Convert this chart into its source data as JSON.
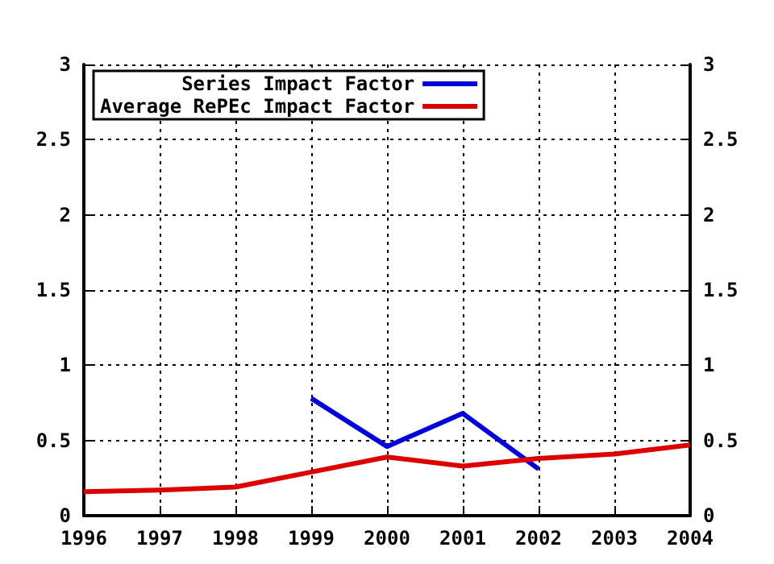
{
  "chart_data": {
    "type": "line",
    "x": [
      1996,
      1997,
      1998,
      1999,
      2000,
      2001,
      2002,
      2003,
      2004
    ],
    "series": [
      {
        "name": "Series Impact Factor",
        "color": "#0000dd",
        "values": [
          null,
          null,
          null,
          0.78,
          0.46,
          0.68,
          0.31,
          null,
          null
        ]
      },
      {
        "name": "Average RePEc Impact Factor",
        "color": "#dd0000",
        "values": [
          0.16,
          0.17,
          0.19,
          0.29,
          0.39,
          0.33,
          0.38,
          0.41,
          0.47
        ]
      }
    ],
    "xlim": [
      1996,
      2004
    ],
    "xticks": [
      1996,
      1997,
      1998,
      1999,
      2000,
      2001,
      2002,
      2003,
      2004
    ],
    "ylim": [
      0,
      3
    ],
    "yticks": [
      0,
      0.5,
      1,
      1.5,
      2,
      2.5,
      3
    ],
    "y2lim": [
      0,
      3
    ],
    "y2ticks": [
      0,
      0.5,
      1,
      1.5,
      2,
      2.5,
      3
    ],
    "grid": true,
    "legend": "top left",
    "marker": "none",
    "line_style": "solid"
  }
}
